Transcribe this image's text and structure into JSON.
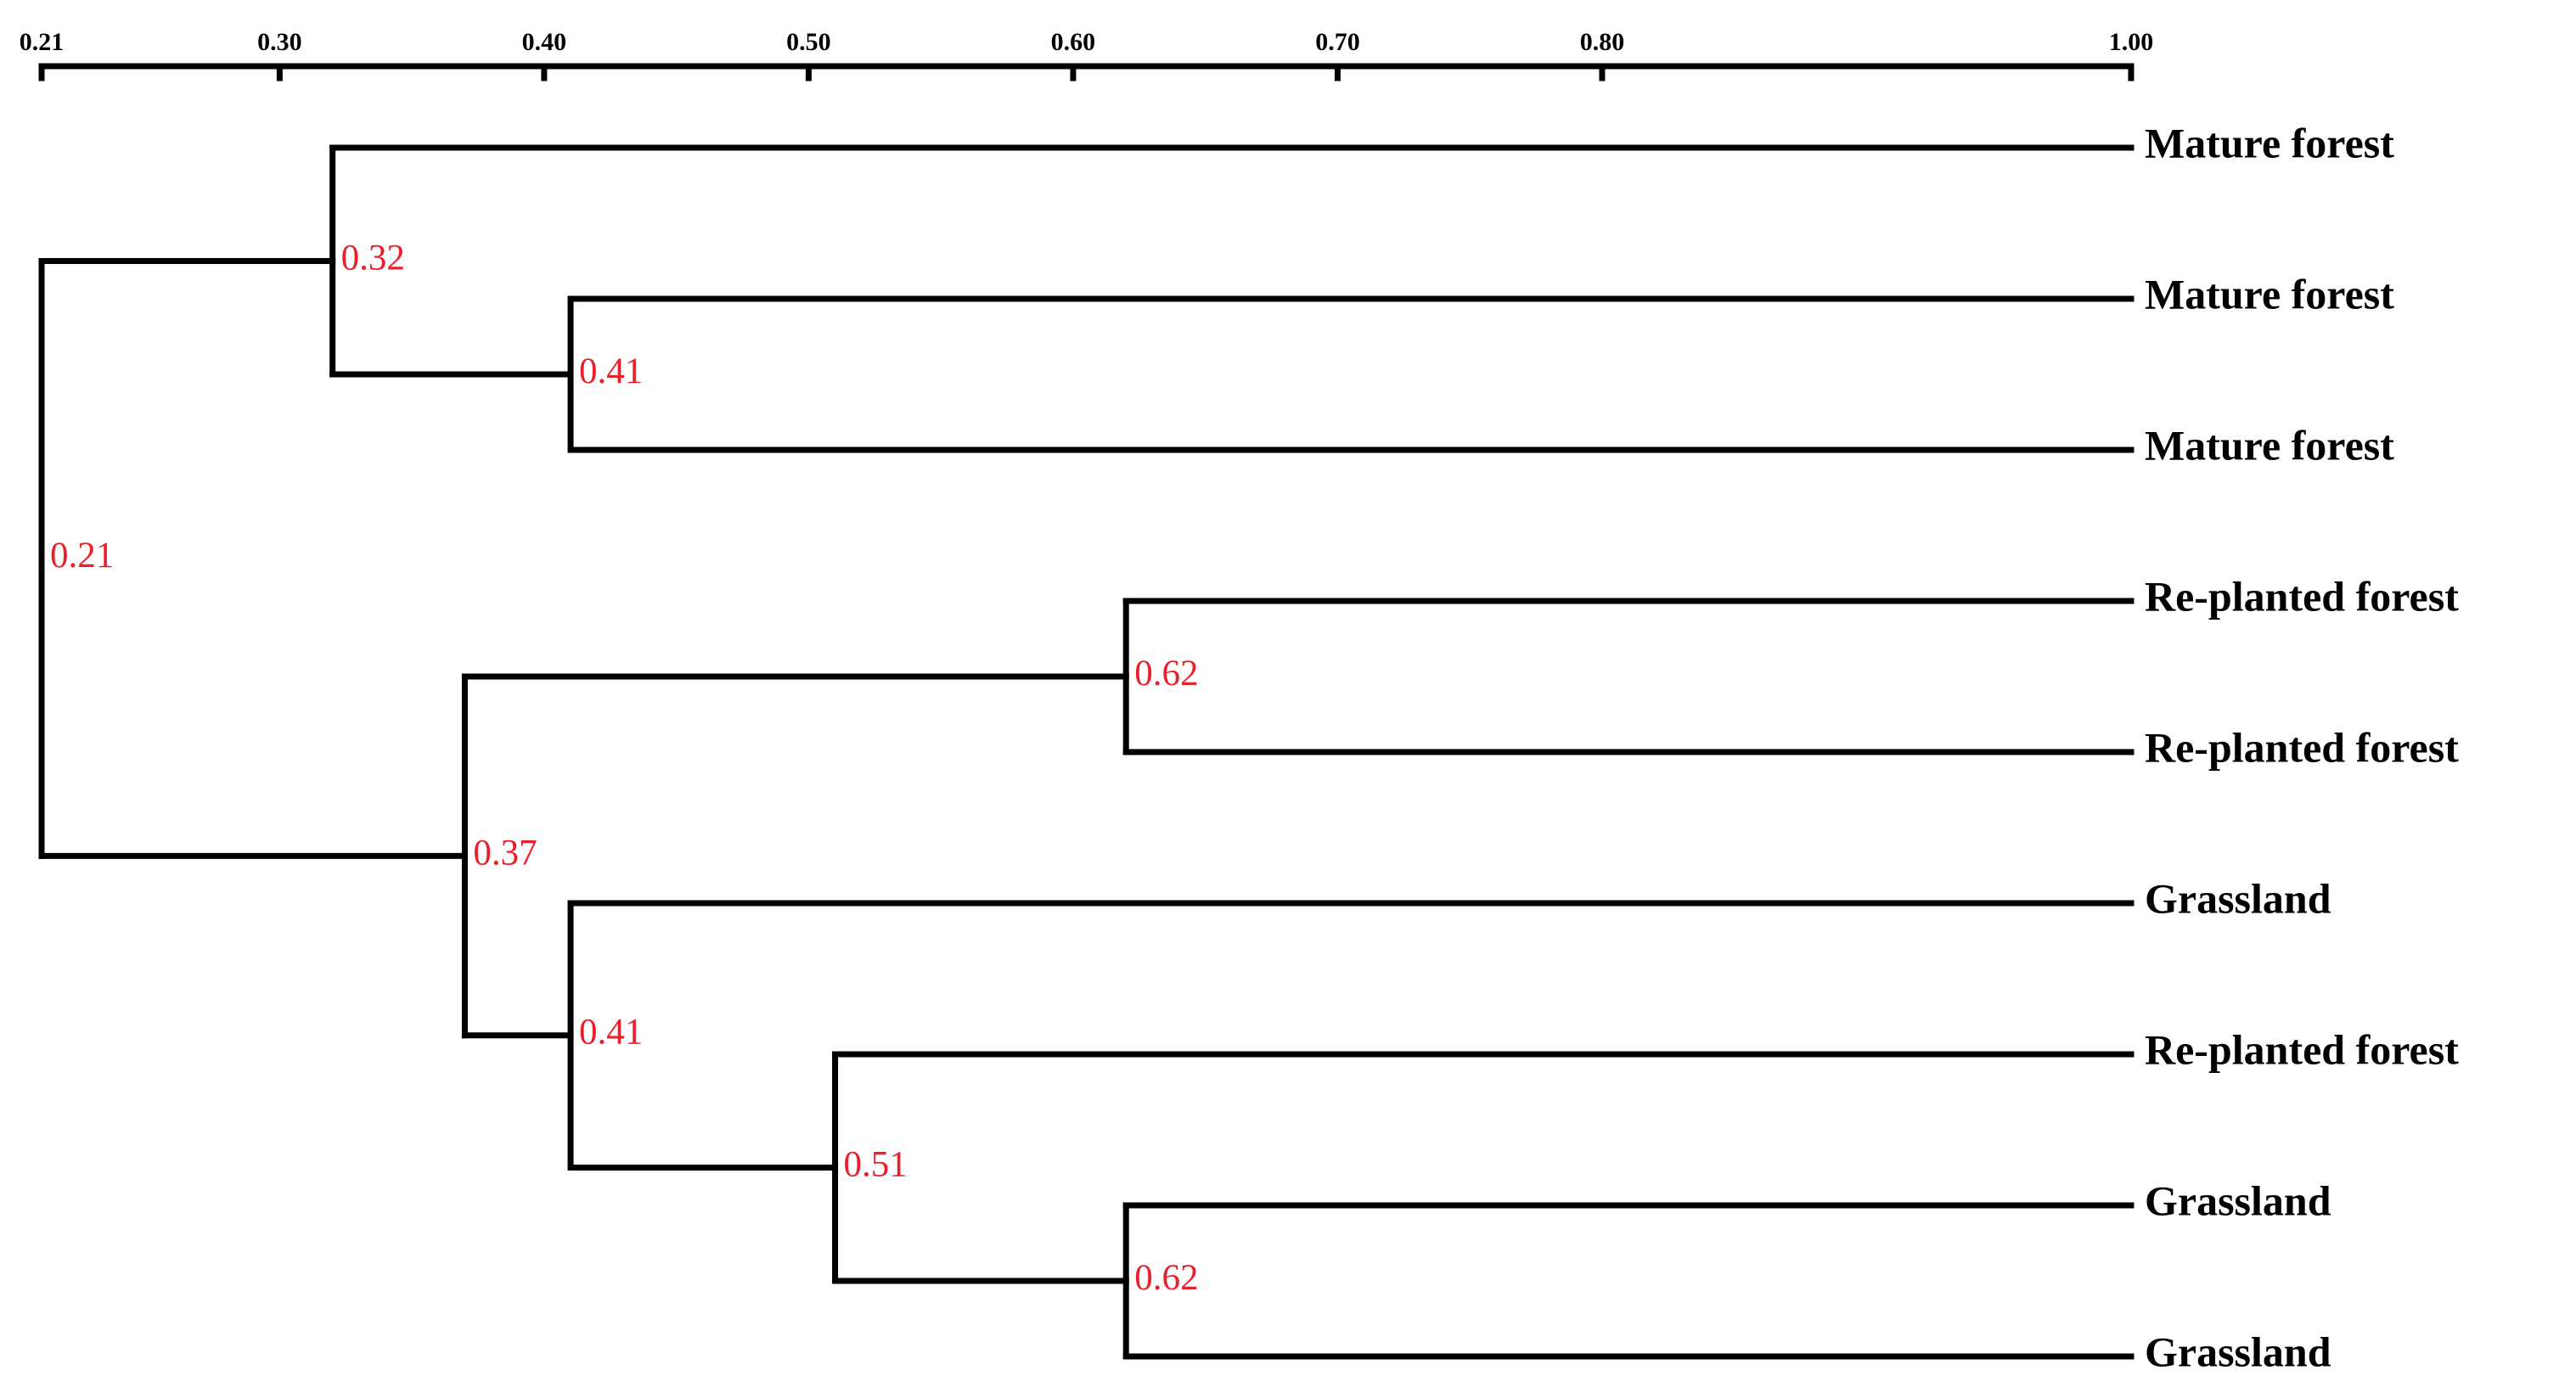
{
  "chart_data": {
    "type": "dendrogram",
    "xlim": [
      0.21,
      1.0
    ],
    "xticks": [
      0.21,
      {
        "value": 0.3,
        "label": "0.30"
      },
      {
        "value": 0.4,
        "label": "0.40"
      },
      {
        "value": 0.5,
        "label": "0.50"
      },
      {
        "value": 0.6,
        "label": "0.60"
      },
      {
        "value": 0.7,
        "label": "0.70"
      },
      {
        "value": 0.8,
        "label": "0.80"
      },
      {
        "value": 1.0,
        "label": "1.00"
      }
    ],
    "tree": {
      "value": 0.21,
      "children": [
        {
          "value": 0.32,
          "children": [
            {
              "label": "Mature forest"
            },
            {
              "value": 0.41,
              "children": [
                {
                  "label": "Mature forest"
                },
                {
                  "label": "Mature forest"
                }
              ]
            }
          ]
        },
        {
          "value": 0.37,
          "children": [
            {
              "value": 0.62,
              "children": [
                {
                  "label": "Re-planted forest"
                },
                {
                  "label": "Re-planted forest"
                }
              ]
            },
            {
              "value": 0.41,
              "children": [
                {
                  "label": "Grassland"
                },
                {
                  "value": 0.51,
                  "children": [
                    {
                      "label": "Re-planted forest"
                    },
                    {
                      "value": 0.62,
                      "children": [
                        {
                          "label": "Grassland"
                        },
                        {
                          "label": "Grassland"
                        }
                      ]
                    }
                  ]
                }
              ]
            }
          ]
        }
      ]
    }
  }
}
